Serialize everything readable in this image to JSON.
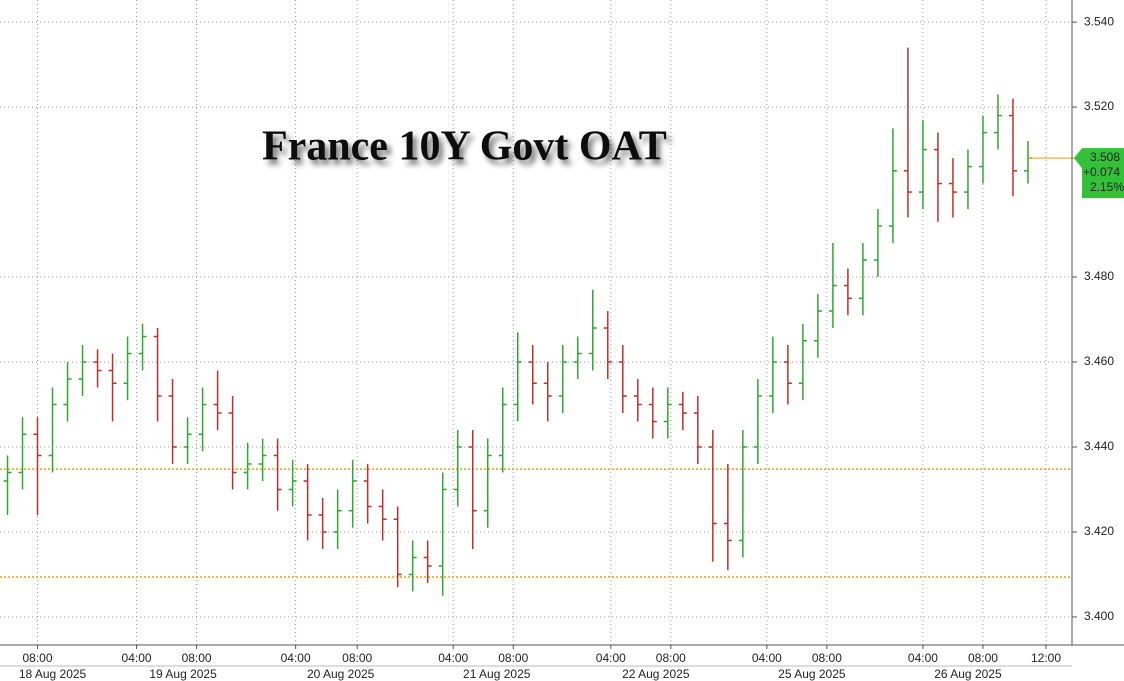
{
  "chart_data": {
    "type": "ohlc",
    "title": "France 10Y Govt OAT",
    "up_color": "#2ea82e",
    "down_color": "#c0302a",
    "grid": true,
    "x": [
      0.5,
      1.5,
      2.5,
      3.5,
      4.5,
      5.5,
      6.5,
      7.5,
      8.5,
      9.5,
      10.5,
      11.5,
      12.5,
      13.5,
      14.5,
      15.5,
      16.5,
      17.5,
      18.5,
      19.5,
      20.5,
      21.5,
      22.5,
      23.5,
      24.5,
      25.5,
      26.5,
      27.5,
      28.5,
      29.5,
      30.5,
      31.5,
      32.5,
      33.5,
      34.5,
      35.5,
      36.5,
      37.5,
      38.5,
      39.5,
      40.5,
      41.5,
      42.5,
      43.5,
      44.5,
      45.5,
      46.5,
      47.5,
      48.5,
      49.5,
      50.5,
      51.5,
      52.5,
      53.5,
      54.5,
      55.5,
      56.5,
      57.5,
      58.5,
      59.5,
      60.5,
      61.5,
      62.5,
      63.5,
      64.5,
      65.5,
      66.5,
      67.5,
      68.5
    ],
    "open": [
      3.432,
      3.434,
      3.443,
      3.438,
      3.45,
      3.456,
      3.46,
      3.458,
      3.455,
      3.462,
      3.466,
      3.452,
      3.44,
      3.443,
      3.45,
      3.448,
      3.434,
      3.436,
      3.438,
      3.43,
      3.432,
      3.424,
      3.42,
      3.425,
      3.432,
      3.426,
      3.423,
      3.41,
      3.414,
      3.412,
      3.43,
      3.44,
      3.425,
      3.438,
      3.45,
      3.46,
      3.455,
      3.452,
      3.46,
      3.462,
      3.468,
      3.46,
      3.452,
      3.45,
      3.446,
      3.45,
      3.448,
      3.44,
      3.422,
      3.418,
      3.44,
      3.452,
      3.46,
      3.455,
      3.465,
      3.472,
      3.478,
      3.475,
      3.484,
      3.492,
      3.505,
      3.5,
      3.51,
      3.502,
      3.5,
      3.506,
      3.514,
      3.518,
      3.505
    ],
    "high": [
      3.438,
      3.447,
      3.447,
      3.454,
      3.46,
      3.464,
      3.463,
      3.462,
      3.466,
      3.469,
      3.468,
      3.456,
      3.447,
      3.454,
      3.458,
      3.452,
      3.441,
      3.442,
      3.442,
      3.437,
      3.436,
      3.428,
      3.43,
      3.437,
      3.436,
      3.43,
      3.426,
      3.418,
      3.418,
      3.434,
      3.444,
      3.444,
      3.442,
      3.454,
      3.467,
      3.464,
      3.46,
      3.464,
      3.466,
      3.477,
      3.472,
      3.464,
      3.456,
      3.454,
      3.454,
      3.453,
      3.452,
      3.444,
      3.436,
      3.444,
      3.456,
      3.466,
      3.464,
      3.469,
      3.476,
      3.488,
      3.482,
      3.488,
      3.496,
      3.515,
      3.534,
      3.517,
      3.514,
      3.508,
      3.51,
      3.518,
      3.523,
      3.522,
      3.512
    ],
    "low": [
      3.424,
      3.43,
      3.424,
      3.434,
      3.446,
      3.452,
      3.454,
      3.446,
      3.451,
      3.458,
      3.446,
      3.436,
      3.436,
      3.439,
      3.444,
      3.43,
      3.43,
      3.432,
      3.425,
      3.426,
      3.418,
      3.416,
      3.416,
      3.421,
      3.422,
      3.418,
      3.407,
      3.406,
      3.408,
      3.405,
      3.426,
      3.416,
      3.421,
      3.434,
      3.446,
      3.45,
      3.446,
      3.448,
      3.456,
      3.458,
      3.456,
      3.448,
      3.446,
      3.442,
      3.442,
      3.444,
      3.436,
      3.413,
      3.411,
      3.414,
      3.436,
      3.448,
      3.45,
      3.451,
      3.461,
      3.468,
      3.471,
      3.471,
      3.48,
      3.488,
      3.494,
      3.496,
      3.493,
      3.494,
      3.496,
      3.502,
      3.51,
      3.499,
      3.502
    ],
    "close": [
      3.434,
      3.443,
      3.438,
      3.45,
      3.456,
      3.46,
      3.458,
      3.455,
      3.462,
      3.466,
      3.452,
      3.44,
      3.443,
      3.45,
      3.448,
      3.434,
      3.436,
      3.438,
      3.43,
      3.432,
      3.424,
      3.42,
      3.425,
      3.432,
      3.426,
      3.423,
      3.41,
      3.414,
      3.412,
      3.43,
      3.44,
      3.425,
      3.438,
      3.45,
      3.46,
      3.455,
      3.452,
      3.46,
      3.462,
      3.468,
      3.46,
      3.452,
      3.45,
      3.446,
      3.45,
      3.448,
      3.44,
      3.422,
      3.418,
      3.44,
      3.452,
      3.46,
      3.455,
      3.465,
      3.472,
      3.478,
      3.475,
      3.484,
      3.492,
      3.505,
      3.5,
      3.51,
      3.502,
      3.5,
      3.506,
      3.514,
      3.518,
      3.505,
      3.508
    ],
    "xlim": [
      0,
      71.3
    ],
    "ylim": [
      3.3934,
      3.5452
    ],
    "yticks": [
      {
        "value": 3.4,
        "label": "3.400"
      },
      {
        "value": 3.42,
        "label": "3.420"
      },
      {
        "value": 3.44,
        "label": "3.440"
      },
      {
        "value": 3.46,
        "label": "3.460"
      },
      {
        "value": 3.48,
        "label": "3.480"
      },
      {
        "value": 3.52,
        "label": "3.520"
      },
      {
        "value": 3.54,
        "label": "3.540"
      }
    ],
    "xticks": [
      {
        "value": 2.5,
        "label": "08:00"
      },
      {
        "value": 9.1,
        "label": "04:00"
      },
      {
        "value": 13.1,
        "label": "08:00"
      },
      {
        "value": 19.7,
        "label": "04:00"
      },
      {
        "value": 23.8,
        "label": "08:00"
      },
      {
        "value": 30.2,
        "label": "04:00"
      },
      {
        "value": 34.2,
        "label": "08:00"
      },
      {
        "value": 40.7,
        "label": "04:00"
      },
      {
        "value": 44.7,
        "label": "08:00"
      },
      {
        "value": 51.1,
        "label": "04:00"
      },
      {
        "value": 55.1,
        "label": "08:00"
      },
      {
        "value": 61.5,
        "label": "04:00"
      },
      {
        "value": 65.5,
        "label": "08:00"
      },
      {
        "value": 69.7,
        "label": "12:00"
      }
    ],
    "date_ticks": [
      {
        "value": 3.5,
        "label": "18 Aug 2025"
      },
      {
        "value": 12.2,
        "label": "19 Aug 2025"
      },
      {
        "value": 22.7,
        "label": "20 Aug 2025"
      },
      {
        "value": 33.1,
        "label": "21 Aug 2025"
      },
      {
        "value": 43.7,
        "label": "22 Aug 2025"
      },
      {
        "value": 54.1,
        "label": "25 Aug 2025"
      },
      {
        "value": 64.5,
        "label": "26 Aug 2025"
      }
    ],
    "reference_lines": {
      "color": "#e0a800",
      "values": [
        3.4348,
        3.4094
      ]
    },
    "last": {
      "value": 3.508,
      "change": {
        "value": 0.074,
        "label": "+0.074"
      },
      "change_pct": {
        "value": 2.15,
        "label": "2.15%"
      },
      "color": "#33c13a",
      "line_color": "#f0a030"
    }
  }
}
